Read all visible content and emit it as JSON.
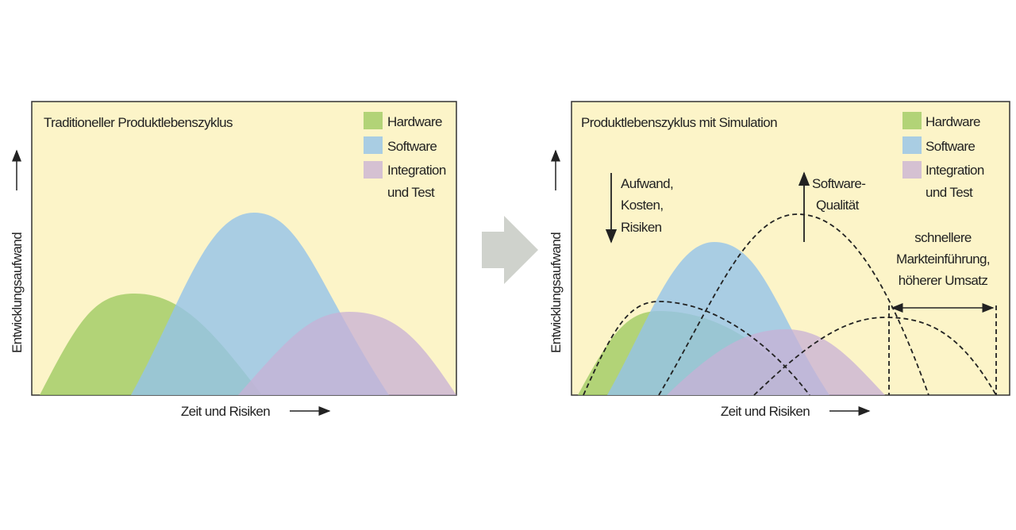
{
  "left": {
    "title": "Traditioneller Produktlebenszyklus",
    "y_axis": "Entwicklungsaufwand",
    "x_axis": "Zeit und Risiken",
    "legend": [
      [
        "Hardware"
      ],
      [
        "Software"
      ],
      [
        "Integration",
        "und Test"
      ]
    ]
  },
  "right": {
    "title": "Produktlebenszyklus mit Simulation",
    "y_axis": "Entwicklungsaufwand",
    "x_axis": "Zeit und Risiken",
    "legend": [
      [
        "Hardware"
      ],
      [
        "Software"
      ],
      [
        "Integration",
        "und Test"
      ]
    ],
    "annotations": [
      [
        "Aufwand,",
        "Kosten,",
        "Risiken"
      ],
      [
        "Software-",
        "Qualität"
      ],
      [
        "schnellere",
        "Markteinführung,",
        "höherer Umsatz"
      ]
    ]
  }
}
